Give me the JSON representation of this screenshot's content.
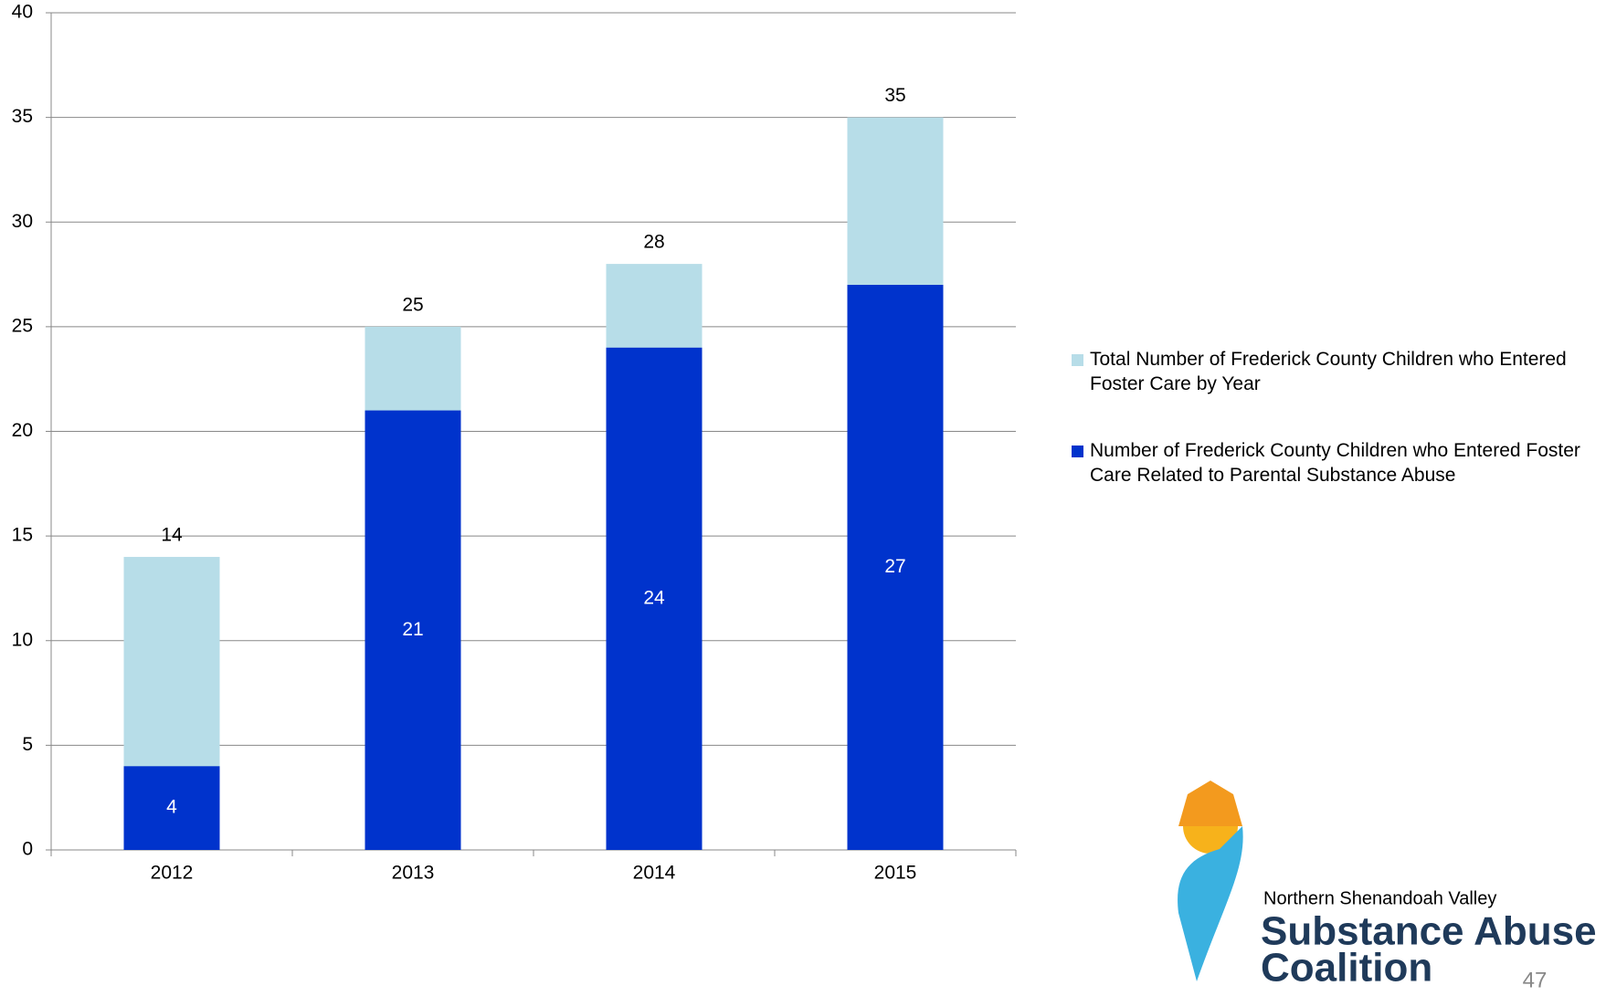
{
  "chart_data": {
    "type": "bar",
    "categories": [
      "2012",
      "2013",
      "2014",
      "2015"
    ],
    "series": [
      {
        "name": "Total Number of Frederick County Children who Entered Foster Care by Year",
        "color": "#b7dde8",
        "values": [
          14,
          25,
          28,
          35
        ]
      },
      {
        "name": "Number of Frederick County Children who Entered Foster Care Related to Parental Substance Abuse",
        "color": "#0033cc",
        "values": [
          4,
          21,
          24,
          27
        ]
      }
    ],
    "ylim": [
      0,
      40
    ],
    "yticks": [
      0,
      5,
      10,
      15,
      20,
      25,
      30,
      35,
      40
    ],
    "grid": true,
    "legend": "right"
  },
  "footer": {
    "logo": [
      "Northern Shenandoah Valley",
      "Substance Abuse",
      "Coalition"
    ],
    "page_number": "47"
  }
}
